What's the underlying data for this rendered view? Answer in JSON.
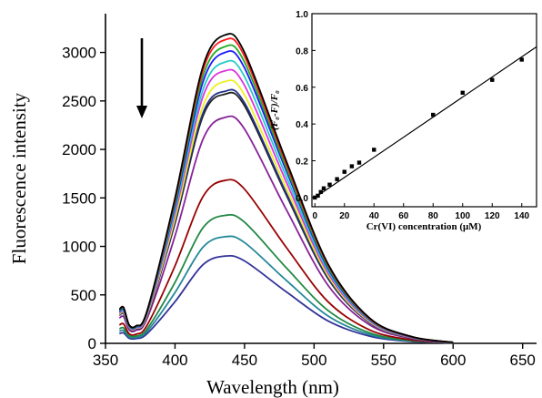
{
  "chart_data": [
    {
      "type": "line",
      "xlabel": "Wavelength (nm)",
      "ylabel": "Fluorescence intensity",
      "xlim": [
        350,
        660
      ],
      "ylim": [
        0,
        3400
      ],
      "xticks": [
        350,
        400,
        450,
        500,
        550,
        600,
        650
      ],
      "yticks": [
        0,
        500,
        1000,
        1500,
        2000,
        2500,
        3000
      ],
      "annotation": "arrow pointing down: intensity decreases with increasing Cr(VI)",
      "colors": [
        "#000000",
        "#ff1a1a",
        "#22aa22",
        "#1a1aff",
        "#22cccc",
        "#dd33dd",
        "#eeee22",
        "#223388",
        "#222222",
        "#882299",
        "#990000",
        "#228844",
        "#228899",
        "#333399"
      ],
      "series": [
        {
          "color": "#000000",
          "x": [
            360,
            363,
            367,
            372,
            380,
            400,
            420,
            436,
            450,
            480,
            510,
            540,
            570,
            600
          ],
          "y": [
            350,
            370,
            190,
            180,
            340,
            1500,
            2850,
            3180,
            3000,
            1880,
            820,
            260,
            70,
            10
          ]
        },
        {
          "color": "#ff1a1a",
          "x": [
            360,
            363,
            367,
            372,
            380,
            400,
            420,
            436,
            450,
            480,
            510,
            540,
            570,
            600
          ],
          "y": [
            350,
            370,
            190,
            180,
            335,
            1480,
            2810,
            3130,
            2960,
            1850,
            810,
            255,
            68,
            10
          ]
        },
        {
          "color": "#22aa22",
          "x": [
            360,
            363,
            367,
            372,
            380,
            400,
            420,
            436,
            450,
            480,
            510,
            540,
            570,
            600
          ],
          "y": [
            340,
            360,
            185,
            175,
            330,
            1450,
            2750,
            3060,
            2900,
            1810,
            790,
            250,
            66,
            10
          ]
        },
        {
          "color": "#1a1aff",
          "x": [
            360,
            363,
            367,
            372,
            380,
            400,
            420,
            436,
            450,
            480,
            510,
            540,
            570,
            600
          ],
          "y": [
            330,
            350,
            180,
            170,
            325,
            1420,
            2690,
            3000,
            2840,
            1780,
            775,
            245,
            64,
            9
          ]
        },
        {
          "color": "#22cccc",
          "x": [
            360,
            363,
            367,
            372,
            380,
            400,
            420,
            436,
            450,
            480,
            510,
            540,
            570,
            600
          ],
          "y": [
            320,
            340,
            175,
            165,
            315,
            1380,
            2610,
            2900,
            2750,
            1720,
            750,
            238,
            62,
            9
          ]
        },
        {
          "color": "#dd33dd",
          "x": [
            360,
            363,
            367,
            372,
            380,
            400,
            420,
            436,
            450,
            480,
            510,
            540,
            570,
            600
          ],
          "y": [
            310,
            330,
            170,
            160,
            305,
            1340,
            2540,
            2810,
            2660,
            1665,
            725,
            230,
            60,
            9
          ]
        },
        {
          "color": "#eeee22",
          "x": [
            360,
            363,
            367,
            372,
            380,
            400,
            420,
            436,
            450,
            480,
            510,
            540,
            570,
            600
          ],
          "y": [
            300,
            320,
            165,
            155,
            295,
            1290,
            2440,
            2700,
            2560,
            1600,
            700,
            222,
            58,
            9
          ]
        },
        {
          "color": "#223388",
          "x": [
            360,
            363,
            367,
            372,
            380,
            400,
            420,
            436,
            450,
            480,
            510,
            540,
            570,
            600
          ],
          "y": [
            295,
            310,
            160,
            150,
            290,
            1260,
            2370,
            2600,
            2480,
            1550,
            680,
            215,
            56,
            9
          ]
        },
        {
          "color": "#222222",
          "x": [
            360,
            363,
            367,
            372,
            380,
            400,
            420,
            436,
            450,
            480,
            510,
            540,
            570,
            600
          ],
          "y": [
            290,
            305,
            158,
            148,
            285,
            1240,
            2340,
            2570,
            2450,
            1530,
            670,
            212,
            55,
            9
          ]
        },
        {
          "color": "#882299",
          "x": [
            360,
            363,
            367,
            372,
            380,
            400,
            420,
            436,
            450,
            480,
            510,
            540,
            570,
            600
          ],
          "y": [
            260,
            275,
            140,
            135,
            260,
            1110,
            2100,
            2330,
            2210,
            1380,
            600,
            190,
            50,
            8
          ]
        },
        {
          "color": "#990000",
          "x": [
            360,
            363,
            367,
            372,
            380,
            400,
            420,
            436,
            450,
            480,
            510,
            540,
            570,
            600
          ],
          "y": [
            190,
            200,
            100,
            95,
            190,
            800,
            1510,
            1680,
            1590,
            990,
            430,
            138,
            36,
            6
          ]
        },
        {
          "color": "#228844",
          "x": [
            360,
            363,
            367,
            372,
            380,
            400,
            420,
            436,
            450,
            480,
            510,
            540,
            570,
            600
          ],
          "y": [
            150,
            160,
            80,
            76,
            150,
            630,
            1190,
            1320,
            1250,
            780,
            340,
            108,
            28,
            5
          ]
        },
        {
          "color": "#228899",
          "x": [
            360,
            363,
            367,
            372,
            380,
            400,
            420,
            436,
            450,
            480,
            510,
            540,
            570,
            600
          ],
          "y": [
            125,
            133,
            66,
            63,
            125,
            525,
            990,
            1100,
            1040,
            650,
            283,
            90,
            24,
            4
          ]
        },
        {
          "color": "#333399",
          "x": [
            360,
            363,
            367,
            372,
            380,
            400,
            420,
            436,
            450,
            480,
            510,
            540,
            570,
            600
          ],
          "y": [
            100,
            108,
            53,
            50,
            101,
            430,
            810,
            900,
            850,
            532,
            232,
            74,
            19,
            3
          ]
        }
      ]
    },
    {
      "type": "scatter",
      "xlabel": "Cr(VI) concentration (μM)",
      "ylabel": "(F₀-F)/F₀",
      "xlim": [
        -2,
        150
      ],
      "ylim": [
        -0.05,
        1.0
      ],
      "xticks": [
        0,
        20,
        40,
        60,
        80,
        100,
        120,
        140
      ],
      "yticks": [
        0.0,
        0.2,
        0.4,
        0.6,
        0.8,
        1.0
      ],
      "series": [
        {
          "x": [
            0,
            2,
            4,
            6,
            10,
            15,
            20,
            25,
            30,
            40,
            80,
            100,
            120,
            140
          ],
          "y": [
            0.0,
            0.01,
            0.03,
            0.05,
            0.07,
            0.1,
            0.14,
            0.17,
            0.19,
            0.26,
            0.45,
            0.57,
            0.64,
            0.75
          ]
        }
      ],
      "fit_line": {
        "x": [
          0,
          150
        ],
        "y": [
          0.0,
          0.82
        ]
      }
    }
  ]
}
